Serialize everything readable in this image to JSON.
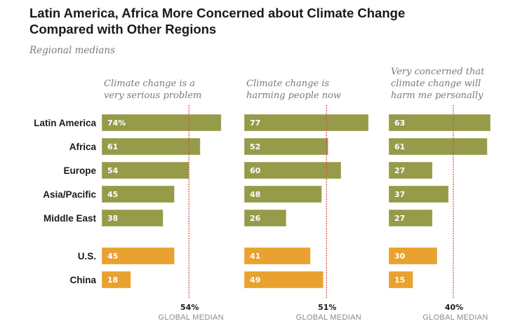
{
  "chart_data": {
    "type": "bar",
    "orientation": "horizontal",
    "title": "Latin America, Africa More Concerned about Climate Change Compared with Other Regions",
    "title_lines": [
      "Latin America, Africa More Concerned about Climate Change",
      "Compared with Other Regions"
    ],
    "subtitle": "Regional medians",
    "categories": [
      "Latin America",
      "Africa",
      "Europe",
      "Asia/Pacific",
      "Middle East",
      "U.S.",
      "China"
    ],
    "category_groups": [
      "region",
      "region",
      "region",
      "region",
      "region",
      "country",
      "country"
    ],
    "colors": {
      "region": "#959b48",
      "country": "#e9a12f",
      "median_line": "#d9534f"
    },
    "panels": [
      {
        "name": "Climate change is a very serious problem",
        "header_lines": [
          "Climate change is a",
          "very serious problem"
        ],
        "values": [
          74,
          61,
          54,
          45,
          38,
          45,
          18
        ],
        "first_label_suffix": "%",
        "global_median": 54,
        "median_value_label": "54%",
        "median_label": "GLOBAL MEDIAN"
      },
      {
        "name": "Climate change is harming people now",
        "header_lines": [
          "Climate change is",
          "harming people now"
        ],
        "values": [
          77,
          52,
          60,
          48,
          26,
          41,
          49
        ],
        "first_label_suffix": "",
        "global_median": 51,
        "median_value_label": "51%",
        "median_label": "GLOBAL MEDIAN"
      },
      {
        "name": "Very concerned that climate change will harm me personally",
        "header_lines": [
          "Very concerned that",
          "climate change will",
          "harm me personally"
        ],
        "values": [
          63,
          61,
          27,
          37,
          27,
          30,
          15
        ],
        "first_label_suffix": "",
        "global_median": 40,
        "median_value_label": "40%",
        "median_label": "GLOBAL MEDIAN"
      }
    ],
    "xlim": [
      0,
      100
    ],
    "unit": "%",
    "grid": false,
    "legend": "none"
  }
}
